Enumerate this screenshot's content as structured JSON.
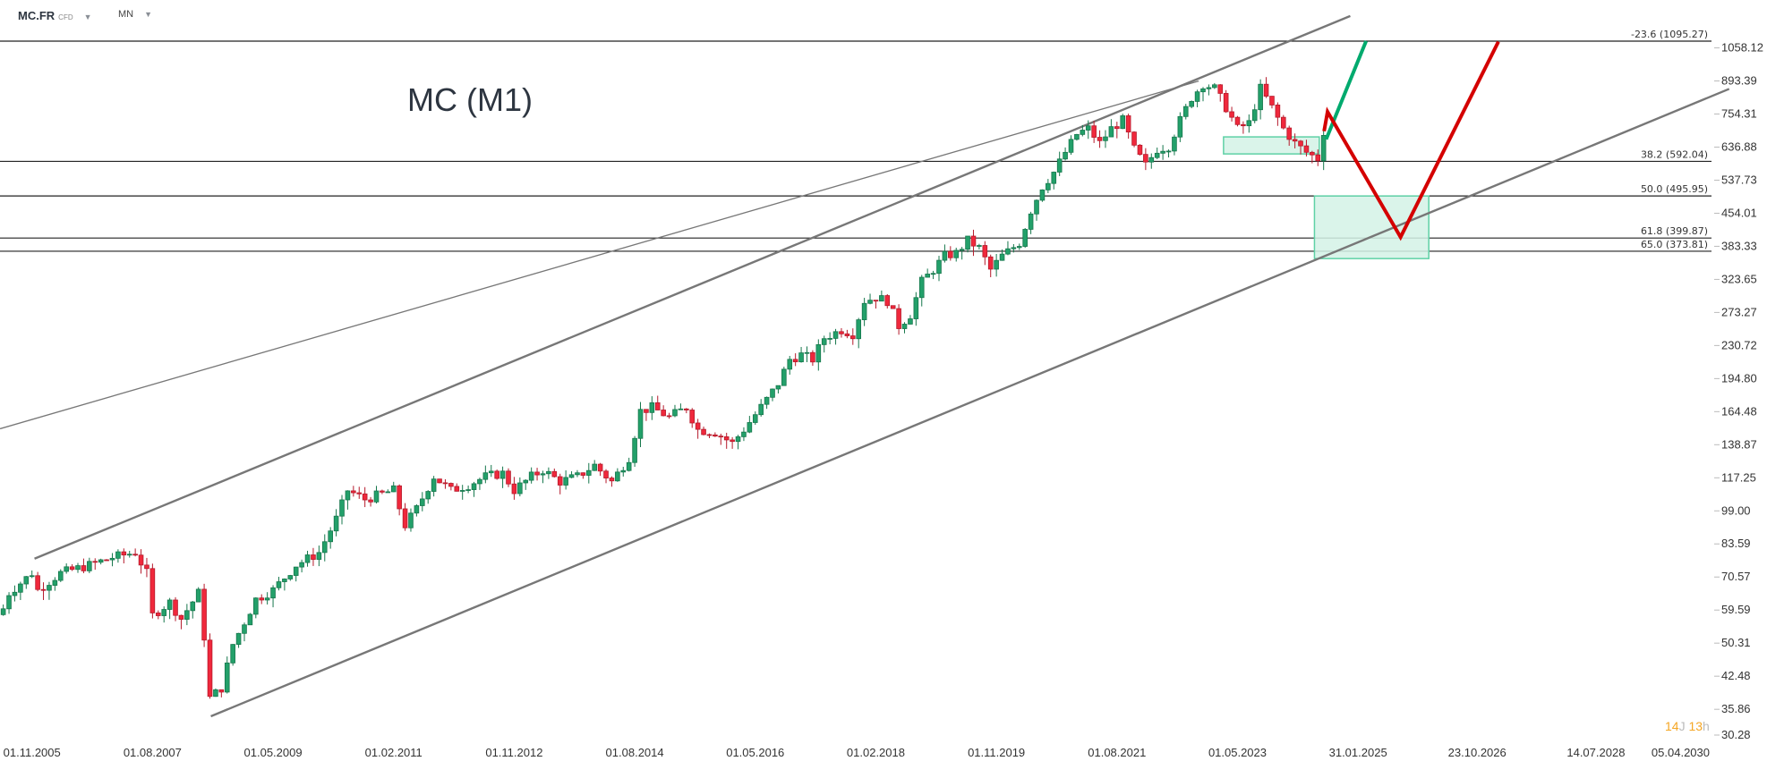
{
  "header": {
    "symbol": "MC.FR",
    "instrument_type": "CFD",
    "timeframe": "MN"
  },
  "timer": {
    "days": "14",
    "days_unit": "J",
    "hours": "13",
    "hours_unit": "h"
  },
  "colors": {
    "up": "#23a06a",
    "up_border": "#16774c",
    "down": "#f0283c",
    "down_border": "#b51a2b",
    "zone": "#d3f2e6",
    "zone_border": "#5fd1a6",
    "projection_up": "#00aa6e",
    "projection_down": "#d40000",
    "trendline": "#777777",
    "level": "#222222"
  },
  "chart_data": {
    "type": "candlestick",
    "title": "MC (M1)",
    "y_scale": "log",
    "ylim": [
      30.28,
      1180
    ],
    "y_ticks": [
      "1058.12",
      "893.39",
      "754.31",
      "636.88",
      "537.73",
      "454.01",
      "383.33",
      "323.65",
      "273.27",
      "230.72",
      "194.80",
      "164.48",
      "138.87",
      "117.25",
      "99.00",
      "83.59",
      "70.57",
      "59.59",
      "50.31",
      "42.48",
      "35.86",
      "30.28"
    ],
    "x_ticks": [
      {
        "label": "01.11.2005",
        "t": 2005.833
      },
      {
        "label": "01.08.2007",
        "t": 2007.583
      },
      {
        "label": "01.05.2009",
        "t": 2009.333
      },
      {
        "label": "01.02.2011",
        "t": 2011.083
      },
      {
        "label": "01.11.2012",
        "t": 2012.833
      },
      {
        "label": "01.08.2014",
        "t": 2014.583
      },
      {
        "label": "01.05.2016",
        "t": 2016.333
      },
      {
        "label": "01.02.2018",
        "t": 2018.083
      },
      {
        "label": "01.11.2019",
        "t": 2019.833
      },
      {
        "label": "01.08.2021",
        "t": 2021.583
      },
      {
        "label": "01.05.2023",
        "t": 2023.333
      },
      {
        "label": "31.01.2025",
        "t": 2025.083
      },
      {
        "label": "23.10.2026",
        "t": 2026.812
      },
      {
        "label": "14.07.2028",
        "t": 2028.536
      },
      {
        "label": "05.04.2030",
        "t": 2030.258
      }
    ],
    "start": 2005.833,
    "close_anchors_by_month_offset": [
      [
        -5,
        60
      ],
      [
        -4,
        65
      ],
      [
        0,
        72
      ],
      [
        1,
        66
      ],
      [
        5,
        72
      ],
      [
        10,
        75
      ],
      [
        14,
        78
      ],
      [
        18,
        80
      ],
      [
        20,
        72
      ],
      [
        21,
        58
      ],
      [
        24,
        62
      ],
      [
        26,
        57
      ],
      [
        29,
        65
      ],
      [
        30,
        52
      ],
      [
        31,
        38
      ],
      [
        33,
        40
      ],
      [
        35,
        50
      ],
      [
        37,
        56
      ],
      [
        39,
        63
      ],
      [
        42,
        66
      ],
      [
        46,
        75
      ],
      [
        50,
        80
      ],
      [
        53,
        95
      ],
      [
        55,
        110
      ],
      [
        58,
        105
      ],
      [
        61,
        108
      ],
      [
        63,
        110
      ],
      [
        65,
        92
      ],
      [
        67,
        100
      ],
      [
        70,
        118
      ],
      [
        73,
        110
      ],
      [
        76,
        113
      ],
      [
        79,
        118
      ],
      [
        82,
        120
      ],
      [
        84,
        110
      ],
      [
        87,
        118
      ],
      [
        89,
        122
      ],
      [
        92,
        115
      ],
      [
        95,
        118
      ],
      [
        98,
        125
      ],
      [
        101,
        115
      ],
      [
        104,
        130
      ],
      [
        106,
        165
      ],
      [
        108,
        168
      ],
      [
        111,
        160
      ],
      [
        114,
        168
      ],
      [
        116,
        150
      ],
      [
        119,
        148
      ],
      [
        122,
        140
      ],
      [
        124,
        150
      ],
      [
        126,
        162
      ],
      [
        128,
        175
      ],
      [
        130,
        190
      ],
      [
        132,
        215
      ],
      [
        134,
        220
      ],
      [
        136,
        215
      ],
      [
        138,
        240
      ],
      [
        141,
        250
      ],
      [
        143,
        245
      ],
      [
        145,
        290
      ],
      [
        147,
        295
      ],
      [
        149,
        290
      ],
      [
        151,
        255
      ],
      [
        153,
        270
      ],
      [
        155,
        320
      ],
      [
        157,
        340
      ],
      [
        159,
        365
      ],
      [
        161,
        370
      ],
      [
        163,
        395
      ],
      [
        165,
        380
      ],
      [
        167,
        340
      ],
      [
        169,
        365
      ],
      [
        172,
        390
      ],
      [
        174,
        460
      ],
      [
        176,
        520
      ],
      [
        178,
        560
      ],
      [
        180,
        620
      ],
      [
        182,
        680
      ],
      [
        184,
        700
      ],
      [
        186,
        650
      ],
      [
        188,
        700
      ],
      [
        190,
        730
      ],
      [
        192,
        630
      ],
      [
        194,
        580
      ],
      [
        196,
        630
      ],
      [
        198,
        640
      ],
      [
        200,
        730
      ],
      [
        202,
        820
      ],
      [
        204,
        880
      ],
      [
        206,
        860
      ],
      [
        208,
        780
      ],
      [
        210,
        700
      ],
      [
        212,
        720
      ],
      [
        214,
        860
      ],
      [
        216,
        780
      ],
      [
        218,
        700
      ],
      [
        220,
        650
      ],
      [
        222,
        620
      ],
      [
        224,
        600
      ],
      [
        225,
        690
      ]
    ],
    "fib_levels": [
      {
        "label": "-23.6 (1095.27)",
        "value": 1095.27
      },
      {
        "label": "38.2 (592.04)",
        "value": 592.04
      },
      {
        "label": "50.0 (495.95)",
        "value": 495.95
      },
      {
        "label": "61.8 (399.87)",
        "value": 399.87
      },
      {
        "label": "65.0 (373.81)",
        "value": 373.81
      }
    ],
    "trendlines": [
      {
        "name": "channel-upper",
        "from": [
          2005.87,
          77.5
        ],
        "to": [
          2024.97,
          1246
        ]
      },
      {
        "name": "long-resistance",
        "from": [
          2005.37,
          150.7
        ],
        "to": [
          2022.77,
          893
        ]
      },
      {
        "name": "channel-lower",
        "from": [
          2008.43,
          34.6
        ],
        "to": [
          2030.47,
          857.7
        ]
      }
    ],
    "zones": [
      {
        "name": "support-zone-small",
        "t": [
          2023.13,
          2024.52
        ],
        "price": [
          615,
          671
        ]
      },
      {
        "name": "target-zone",
        "t": [
          2024.45,
          2026.11
        ],
        "price": [
          360,
          495.95
        ]
      }
    ],
    "projections": [
      {
        "name": "bullish-path",
        "points": [
          [
            2024.62,
            663
          ],
          [
            2025.2,
            1096
          ]
        ]
      },
      {
        "name": "bearish-path",
        "points": [
          [
            2024.59,
            691
          ],
          [
            2024.64,
            763
          ],
          [
            2025.7,
            401.8
          ],
          [
            2027.12,
            1092
          ]
        ]
      }
    ]
  }
}
